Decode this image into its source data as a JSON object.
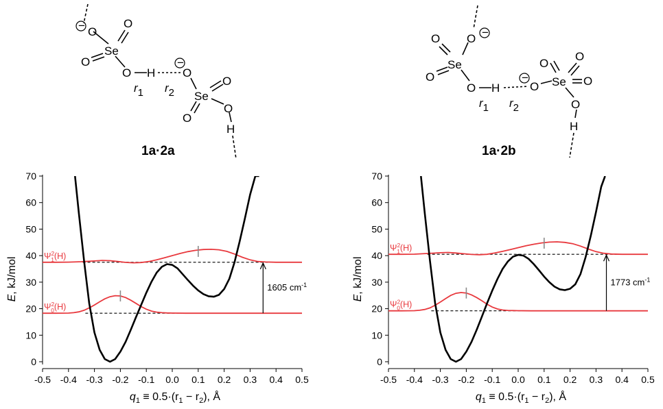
{
  "structures": [
    {
      "label": "1a·2a",
      "atoms": {
        "se": "Se",
        "o": "O",
        "h": "H",
        "r1": "r",
        "r1_sub": "1",
        "r2": "r",
        "r2_sub": "2",
        "charge": "−"
      }
    },
    {
      "label": "1a·2b",
      "atoms": {
        "se": "Se",
        "o": "O",
        "h": "H",
        "r1": "r",
        "r1_sub": "1",
        "r2": "r",
        "r2_sub": "2",
        "charge": "−"
      }
    }
  ],
  "chart_data": [
    {
      "type": "line",
      "structure": "1a·2a",
      "xlabel": {
        "sym": "q",
        "sub": "1",
        "rest": " ≡ 0.5·(r",
        "rest_sub1": "1",
        "mid": " − r",
        "rest_sub2": "2",
        "end": "), Å"
      },
      "ylabel": {
        "sym": "E",
        "rest": ", kJ/mol"
      },
      "xlim": [
        -0.5,
        0.5
      ],
      "ylim": [
        0,
        70
      ],
      "xticks": [
        "-0.5",
        "-0.4",
        "-0.3",
        "-0.2",
        "-0.1",
        "0.0",
        "0.1",
        "0.2",
        "0.3",
        "0.4",
        "0.5"
      ],
      "yticks": [
        "0",
        "10",
        "20",
        "30",
        "40",
        "50",
        "60",
        "70"
      ],
      "potential": {
        "color": "#000000",
        "x": [
          -0.375,
          -0.36,
          -0.34,
          -0.32,
          -0.3,
          -0.28,
          -0.26,
          -0.24,
          -0.22,
          -0.2,
          -0.18,
          -0.16,
          -0.14,
          -0.12,
          -0.1,
          -0.08,
          -0.06,
          -0.04,
          -0.02,
          0.0,
          0.02,
          0.04,
          0.06,
          0.08,
          0.1,
          0.12,
          0.14,
          0.16,
          0.18,
          0.2,
          0.22,
          0.24,
          0.26,
          0.28,
          0.3,
          0.32,
          0.335
        ],
        "y": [
          70,
          56,
          38,
          22,
          11,
          4.5,
          1,
          0,
          1,
          3.8,
          7.5,
          12,
          16.8,
          21.4,
          26,
          30.2,
          33.6,
          35.8,
          36.8,
          36.5,
          35.2,
          33,
          30.8,
          28.7,
          26.9,
          25.5,
          24.7,
          24.5,
          25.2,
          27.4,
          31.3,
          37.5,
          45.5,
          54,
          63,
          70,
          70
        ]
      },
      "levels": [
        {
          "name": "Ψ0²(H)",
          "sym": "Ψ",
          "sup": "2",
          "sub": "0",
          "tail": "(H)",
          "E": 18.3,
          "x_range": [
            -0.335,
            -0.1
          ]
        },
        {
          "name": "Ψ1²(H)",
          "sym": "Ψ",
          "sup": "2",
          "sub": "1",
          "tail": "(H)",
          "E": 37.5,
          "x_range": [
            -0.345,
            0.29
          ]
        }
      ],
      "psi0": {
        "color": "#e8383d",
        "x": [
          -0.5,
          -0.45,
          -0.4,
          -0.38,
          -0.36,
          -0.34,
          -0.32,
          -0.3,
          -0.28,
          -0.26,
          -0.24,
          -0.22,
          -0.2,
          -0.18,
          -0.16,
          -0.14,
          -0.12,
          -0.1,
          -0.08,
          -0.06,
          -0.04,
          -0.02,
          0.0,
          0.05,
          0.1,
          0.2,
          0.3,
          0.4,
          0.5
        ],
        "y": [
          18.3,
          18.3,
          18.35,
          18.5,
          18.8,
          19.4,
          20.3,
          21.4,
          22.6,
          23.7,
          24.5,
          24.9,
          24.8,
          24.2,
          23.2,
          22,
          20.8,
          19.8,
          19.1,
          18.7,
          18.5,
          18.4,
          18.35,
          18.3,
          18.3,
          18.3,
          18.3,
          18.3,
          18.3
        ]
      },
      "psi1": {
        "color": "#e8383d",
        "x": [
          -0.5,
          -0.45,
          -0.4,
          -0.35,
          -0.3,
          -0.27,
          -0.24,
          -0.21,
          -0.18,
          -0.15,
          -0.12,
          -0.09,
          -0.06,
          -0.03,
          0.0,
          0.03,
          0.06,
          0.09,
          0.12,
          0.15,
          0.18,
          0.21,
          0.24,
          0.27,
          0.3,
          0.33,
          0.36,
          0.4,
          0.45,
          0.5
        ],
        "y": [
          37.5,
          37.5,
          37.55,
          37.7,
          38.0,
          38.2,
          38.1,
          37.8,
          37.45,
          37.3,
          37.4,
          37.8,
          38.4,
          39.2,
          40.0,
          40.8,
          41.5,
          42.0,
          42.3,
          42.4,
          42.2,
          41.6,
          40.6,
          39.4,
          38.4,
          37.8,
          37.6,
          37.5,
          37.5,
          37.5
        ]
      },
      "markers": [
        {
          "x": -0.2,
          "y": 24.8
        },
        {
          "x": 0.1,
          "y": 41.6
        }
      ],
      "transition": {
        "x": 0.35,
        "from": 18.3,
        "to": 37.5,
        "label": "1605 cm",
        "label_sup": "-1"
      }
    },
    {
      "type": "line",
      "structure": "1a·2b",
      "xlabel": {
        "sym": "q",
        "sub": "1",
        "rest": " ≡ 0.5·(r",
        "rest_sub1": "1",
        "mid": " − r",
        "rest_sub2": "2",
        "end": "), Å"
      },
      "ylabel": {
        "sym": "E",
        "rest": ", kJ/mol"
      },
      "xlim": [
        -0.5,
        0.5
      ],
      "ylim": [
        0,
        70
      ],
      "xticks": [
        "-0.5",
        "-0.4",
        "-0.3",
        "-0.2",
        "-0.1",
        "0.0",
        "0.1",
        "0.2",
        "0.3",
        "0.4",
        "0.5"
      ],
      "yticks": [
        "0",
        "10",
        "20",
        "30",
        "40",
        "50",
        "60",
        "70"
      ],
      "potential": {
        "color": "#000000",
        "x": [
          -0.375,
          -0.36,
          -0.34,
          -0.32,
          -0.3,
          -0.28,
          -0.26,
          -0.24,
          -0.22,
          -0.2,
          -0.18,
          -0.16,
          -0.14,
          -0.12,
          -0.1,
          -0.08,
          -0.06,
          -0.04,
          -0.02,
          0.0,
          0.02,
          0.04,
          0.06,
          0.08,
          0.1,
          0.12,
          0.14,
          0.16,
          0.18,
          0.2,
          0.22,
          0.24,
          0.26,
          0.28,
          0.3,
          0.32,
          0.335
        ],
        "y": [
          70,
          56,
          38,
          22,
          11,
          4.5,
          1,
          0,
          1,
          3.8,
          7.5,
          12,
          17,
          22,
          26.8,
          31.2,
          35,
          37.8,
          39.6,
          40.3,
          40,
          38.8,
          36.8,
          34.5,
          32.1,
          30,
          28.3,
          27.3,
          27,
          27.5,
          29.2,
          33,
          39.5,
          47.5,
          56.5,
          66,
          70
        ]
      },
      "levels": [
        {
          "name": "Ψ0²(H)",
          "sym": "Ψ",
          "sup": "2",
          "sub": "0",
          "tail": "(H)",
          "E": 19.2,
          "x_range": [
            -0.335,
            -0.1
          ]
        },
        {
          "name": "Ψ1²(H)",
          "sym": "Ψ",
          "sup": "2",
          "sub": "1",
          "tail": "(H)",
          "E": 40.5,
          "x_range": [
            -0.35,
            0.3
          ]
        }
      ],
      "psi0": {
        "color": "#e8383d",
        "x": [
          -0.5,
          -0.45,
          -0.4,
          -0.38,
          -0.36,
          -0.34,
          -0.32,
          -0.3,
          -0.28,
          -0.26,
          -0.24,
          -0.22,
          -0.2,
          -0.18,
          -0.16,
          -0.14,
          -0.12,
          -0.1,
          -0.08,
          -0.06,
          -0.04,
          -0.02,
          0.0,
          0.05,
          0.1,
          0.2,
          0.3,
          0.4,
          0.5
        ],
        "y": [
          19.2,
          19.2,
          19.25,
          19.4,
          19.7,
          20.3,
          21.3,
          22.5,
          23.8,
          25.0,
          25.8,
          26.1,
          25.9,
          25.2,
          24.2,
          23.0,
          21.7,
          20.6,
          19.9,
          19.5,
          19.35,
          19.3,
          19.25,
          19.2,
          19.2,
          19.2,
          19.2,
          19.2,
          19.2
        ]
      },
      "psi1": {
        "color": "#e8383d",
        "x": [
          -0.5,
          -0.45,
          -0.4,
          -0.35,
          -0.3,
          -0.27,
          -0.24,
          -0.21,
          -0.18,
          -0.15,
          -0.12,
          -0.09,
          -0.06,
          -0.03,
          0.0,
          0.03,
          0.06,
          0.09,
          0.12,
          0.15,
          0.18,
          0.21,
          0.24,
          0.27,
          0.3,
          0.33,
          0.36,
          0.4,
          0.45,
          0.5
        ],
        "y": [
          40.5,
          40.5,
          40.55,
          40.8,
          41.1,
          41.2,
          41.0,
          40.7,
          40.45,
          40.35,
          40.5,
          41.0,
          41.6,
          42.3,
          43.0,
          43.7,
          44.3,
          44.8,
          45.1,
          45.2,
          45.0,
          44.5,
          43.6,
          42.5,
          41.5,
          40.9,
          40.6,
          40.5,
          40.5,
          40.5
        ]
      },
      "markers": [
        {
          "x": -0.2,
          "y": 25.9
        },
        {
          "x": 0.1,
          "y": 44.7
        }
      ],
      "transition": {
        "x": 0.34,
        "from": 19.2,
        "to": 40.5,
        "label": "1773 cm",
        "label_sup": "-1"
      }
    }
  ]
}
